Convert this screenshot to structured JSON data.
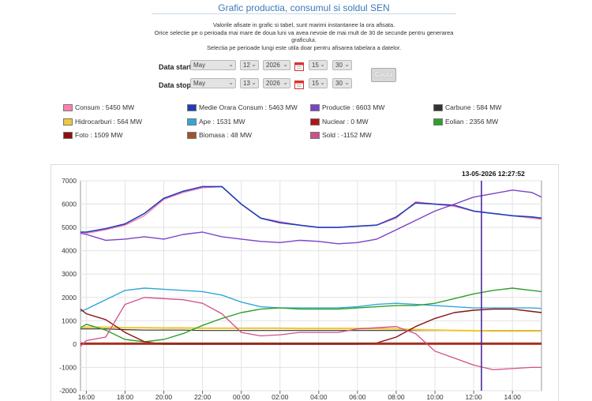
{
  "header": {
    "title": "Grafic productia, consumul si soldul SEN",
    "note1": "Valorile afisate in grafic si tabel, sunt marimi instantanee la ora afisata.",
    "note2": "Orice selectie pe o perioada mai mare de doua luni va avea nevoie de mai mult de 30 de secunde pentru generarea graficului.",
    "note3": "Selectia pe perioade lungi este utila doar pentru afisarea tabelara a datelor."
  },
  "form": {
    "start_label": "Data start",
    "stop_label": "Data stop",
    "start": {
      "month": "May",
      "day": "12",
      "year": "2026",
      "hour": "15",
      "minute": "30"
    },
    "stop": {
      "month": "May",
      "day": "13",
      "year": "2026",
      "hour": "15",
      "minute": "30"
    },
    "button": "Cauta"
  },
  "legend": [
    {
      "label": "Consum : 5450 MW",
      "color": "#ff7fb0"
    },
    {
      "label": "Medie Orara Consum : 5463 MW",
      "color": "#1f3dbb"
    },
    {
      "label": "Productie : 6603 MW",
      "color": "#7b42c8"
    },
    {
      "label": "Carbune : 584 MW",
      "color": "#333333"
    },
    {
      "label": "Hidrocarburi : 564 MW",
      "color": "#f0c83c"
    },
    {
      "label": "Ape : 1531 MW",
      "color": "#33a6d8"
    },
    {
      "label": "Nuclear : 0 MW",
      "color": "#b01515"
    },
    {
      "label": "Eolian : 2356 MW",
      "color": "#2ca02c"
    },
    {
      "label": "Foto : 1509 MW",
      "color": "#8b1010"
    },
    {
      "label": "Biomasa : 48 MW",
      "color": "#a0522d"
    },
    {
      "label": "Sold : -1152 MW",
      "color": "#d05088"
    }
  ],
  "timestamp": "13-05-2026 12:27:52",
  "chart_data": {
    "type": "line",
    "x_ticks": [
      "16:00",
      "18:00",
      "20:00",
      "22:00",
      "00:00",
      "02:00",
      "04:00",
      "06:00",
      "08:00",
      "10:00",
      "12:00",
      "14:00"
    ],
    "x_hours": [
      15.7,
      16,
      17,
      18,
      19,
      20,
      21,
      22,
      23,
      24,
      25,
      26,
      27,
      28,
      29,
      30,
      31,
      32,
      33,
      34,
      35,
      36,
      37,
      38,
      39,
      39.5
    ],
    "ylim": [
      -2000,
      7000
    ],
    "y_ticks": [
      -2000,
      -1000,
      0,
      1000,
      2000,
      3000,
      4000,
      5000,
      6000,
      7000
    ],
    "cursor_hour": 36.4,
    "series": [
      {
        "name": "Consum",
        "color": "#ff7fb0",
        "width": 1.4,
        "values": [
          4800,
          4750,
          4900,
          5100,
          5500,
          6200,
          6500,
          6700,
          6750,
          6000,
          5400,
          5250,
          5100,
          5000,
          5000,
          5050,
          5100,
          5400,
          6100,
          6000,
          5900,
          5700,
          5600,
          5500,
          5400,
          5350
        ]
      },
      {
        "name": "Medie Orara Consum",
        "color": "#1f3dbb",
        "width": 1.6,
        "values": [
          4800,
          4800,
          4950,
          5150,
          5600,
          6250,
          6550,
          6750,
          6750,
          6000,
          5400,
          5200,
          5100,
          5000,
          5000,
          5050,
          5100,
          5450,
          6050,
          6000,
          5950,
          5700,
          5600,
          5500,
          5450,
          5400
        ]
      },
      {
        "name": "Productie",
        "color": "#7b42c8",
        "width": 1.4,
        "values": [
          4750,
          4700,
          4450,
          4500,
          4600,
          4500,
          4700,
          4800,
          4600,
          4500,
          4400,
          4350,
          4450,
          4400,
          4300,
          4350,
          4500,
          4900,
          5300,
          5700,
          6000,
          6300,
          6450,
          6600,
          6500,
          6300
        ]
      },
      {
        "name": "Carbune",
        "color": "#333333",
        "width": 1.2,
        "values": [
          650,
          650,
          650,
          620,
          600,
          600,
          600,
          580,
          580,
          580,
          580,
          580,
          580,
          580,
          580,
          580,
          580,
          580,
          580,
          580,
          580,
          580,
          580,
          580,
          580,
          580
        ]
      },
      {
        "name": "Hidrocarburi",
        "color": "#f0c83c",
        "width": 2.2,
        "values": [
          720,
          720,
          720,
          700,
          700,
          690,
          690,
          680,
          680,
          680,
          680,
          680,
          670,
          670,
          670,
          670,
          660,
          650,
          620,
          600,
          580,
          570,
          560,
          560,
          560,
          560
        ]
      },
      {
        "name": "Ape",
        "color": "#33a6d8",
        "width": 1.4,
        "values": [
          1400,
          1500,
          1900,
          2300,
          2400,
          2350,
          2300,
          2250,
          2100,
          1800,
          1600,
          1550,
          1550,
          1550,
          1550,
          1600,
          1700,
          1750,
          1700,
          1650,
          1600,
          1550,
          1550,
          1550,
          1550,
          1530
        ]
      },
      {
        "name": "Nuclear",
        "color": "#b01515",
        "width": 2.2,
        "values": [
          10,
          10,
          10,
          10,
          10,
          10,
          10,
          10,
          10,
          10,
          10,
          10,
          10,
          10,
          10,
          10,
          10,
          10,
          10,
          10,
          10,
          10,
          10,
          10,
          10,
          10
        ]
      },
      {
        "name": "Eolian",
        "color": "#2ca02c",
        "width": 1.4,
        "values": [
          700,
          850,
          600,
          200,
          100,
          200,
          450,
          800,
          1100,
          1350,
          1500,
          1550,
          1500,
          1500,
          1500,
          1550,
          1600,
          1650,
          1650,
          1750,
          1950,
          2150,
          2300,
          2400,
          2300,
          2250
        ]
      },
      {
        "name": "Foto",
        "color": "#8b1010",
        "width": 1.4,
        "values": [
          1500,
          1300,
          1050,
          500,
          100,
          0,
          0,
          0,
          0,
          0,
          0,
          0,
          0,
          0,
          0,
          0,
          50,
          300,
          750,
          1100,
          1350,
          1450,
          1500,
          1500,
          1400,
          1350
        ]
      },
      {
        "name": "Biomasa",
        "color": "#a0522d",
        "width": 1.2,
        "values": [
          50,
          50,
          50,
          50,
          50,
          50,
          50,
          50,
          50,
          50,
          50,
          50,
          50,
          50,
          50,
          50,
          50,
          50,
          50,
          50,
          50,
          50,
          50,
          50,
          50,
          50
        ]
      },
      {
        "name": "Sold",
        "color": "#d05088",
        "width": 1.3,
        "values": [
          -100,
          150,
          300,
          1700,
          2000,
          1950,
          1900,
          1750,
          1300,
          500,
          350,
          400,
          500,
          500,
          500,
          650,
          700,
          750,
          450,
          -300,
          -600,
          -900,
          -1100,
          -1050,
          -1000,
          -1000
        ]
      }
    ]
  }
}
